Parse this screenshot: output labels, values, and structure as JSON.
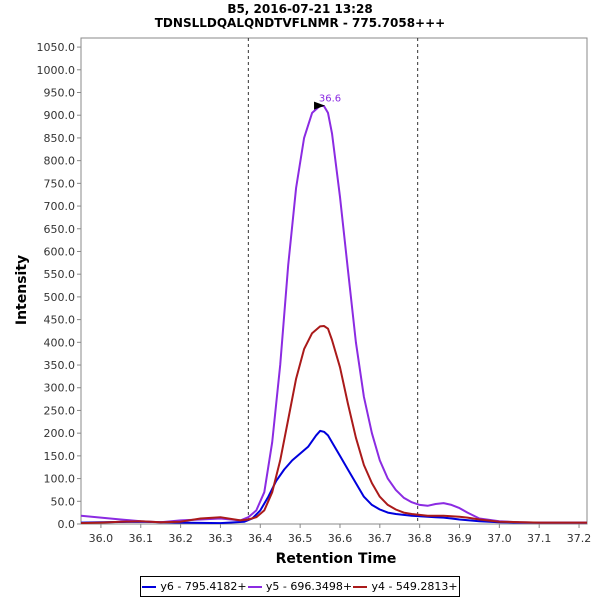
{
  "chart_data": {
    "type": "line",
    "title": "B5, 2016-07-21 13:28",
    "subtitle": "TDNSLLDQALQNDTVFLNMR - 775.7058+++",
    "xlabel": "Retention Time",
    "ylabel": "Intensity",
    "xlim": [
      35.95,
      37.22
    ],
    "ylim": [
      0,
      1070
    ],
    "x_ticks": [
      36.0,
      36.1,
      36.2,
      36.3,
      36.4,
      36.5,
      36.6,
      36.7,
      36.8,
      36.9,
      37.0,
      37.1,
      37.2
    ],
    "x_tick_labels": [
      "36.0",
      "36.1",
      "36.2",
      "36.3",
      "36.4",
      "36.5",
      "36.6",
      "36.7",
      "36.8",
      "36.9",
      "37.0",
      "37.1",
      "37.2"
    ],
    "y_ticks": [
      0,
      50,
      100,
      150,
      200,
      250,
      300,
      350,
      400,
      450,
      500,
      550,
      600,
      650,
      700,
      750,
      800,
      850,
      900,
      950,
      1000,
      1050
    ],
    "y_tick_labels": [
      "0.0",
      "50.0",
      "100.0",
      "150.0",
      "200.0",
      "250.0",
      "300.0",
      "350.0",
      "400.0",
      "450.0",
      "500.0",
      "550.0",
      "600.0",
      "650.0",
      "700.0",
      "750.0",
      "800.0",
      "850.0",
      "900.0",
      "950.0",
      "1000.0",
      "1050.0"
    ],
    "vlines": [
      36.37,
      36.795
    ],
    "annotation": {
      "text": "36.6",
      "x": 36.565,
      "y": 921,
      "color": "#8b2be2"
    },
    "series": [
      {
        "name": "y6 - 795.4182+",
        "color": "#0000dd",
        "x": [
          35.95,
          36.0,
          36.1,
          36.2,
          36.3,
          36.36,
          36.38,
          36.4,
          36.42,
          36.44,
          36.46,
          36.48,
          36.5,
          36.52,
          36.54,
          36.55,
          36.56,
          36.57,
          36.58,
          36.6,
          36.62,
          36.64,
          36.66,
          36.68,
          36.7,
          36.72,
          36.74,
          36.76,
          36.78,
          36.8,
          36.82,
          36.84,
          36.86,
          36.88,
          36.9,
          36.95,
          37.0,
          37.05,
          37.1,
          37.15,
          37.22
        ],
        "y": [
          3,
          4,
          5,
          3,
          2,
          5,
          12,
          30,
          60,
          95,
          120,
          140,
          155,
          170,
          195,
          205,
          203,
          195,
          180,
          150,
          120,
          90,
          60,
          42,
          32,
          25,
          22,
          20,
          18,
          17,
          16,
          15,
          14,
          12,
          10,
          6,
          4,
          3,
          3,
          3,
          3
        ]
      },
      {
        "name": "y5 - 696.3498+",
        "color": "#8b2be2",
        "x": [
          35.95,
          36.0,
          36.05,
          36.1,
          36.15,
          36.2,
          36.25,
          36.3,
          36.35,
          36.37,
          36.39,
          36.41,
          36.43,
          36.45,
          36.47,
          36.49,
          36.51,
          36.53,
          36.55,
          36.56,
          36.57,
          36.58,
          36.6,
          36.62,
          36.64,
          36.66,
          36.68,
          36.7,
          36.72,
          36.74,
          36.76,
          36.78,
          36.8,
          36.82,
          36.84,
          36.86,
          36.88,
          36.9,
          36.92,
          36.95,
          37.0,
          37.05,
          37.1,
          37.15,
          37.22
        ],
        "y": [
          18,
          14,
          10,
          6,
          4,
          8,
          10,
          12,
          8,
          15,
          30,
          70,
          180,
          350,
          570,
          740,
          850,
          905,
          921,
          920,
          905,
          860,
          720,
          560,
          400,
          280,
          200,
          140,
          100,
          75,
          58,
          48,
          42,
          40,
          44,
          46,
          42,
          35,
          25,
          12,
          6,
          4,
          3,
          3,
          3
        ]
      },
      {
        "name": "y4 - 549.2813+",
        "color": "#aa1a1a",
        "x": [
          35.95,
          36.0,
          36.05,
          36.1,
          36.15,
          36.2,
          36.25,
          36.3,
          36.35,
          36.37,
          36.39,
          36.41,
          36.43,
          36.45,
          36.47,
          36.49,
          36.51,
          36.53,
          36.55,
          36.56,
          36.57,
          36.58,
          36.6,
          36.62,
          36.64,
          36.66,
          36.68,
          36.7,
          36.72,
          36.74,
          36.76,
          36.78,
          36.8,
          36.82,
          36.84,
          36.86,
          36.88,
          36.9,
          36.92,
          36.95,
          37.0,
          37.1,
          37.22
        ],
        "y": [
          2,
          3,
          5,
          6,
          4,
          5,
          12,
          15,
          8,
          10,
          15,
          30,
          70,
          140,
          230,
          320,
          385,
          420,
          435,
          436,
          430,
          405,
          345,
          265,
          190,
          130,
          90,
          60,
          42,
          32,
          25,
          22,
          20,
          18,
          18,
          18,
          17,
          16,
          14,
          10,
          5,
          3,
          3
        ]
      }
    ]
  }
}
